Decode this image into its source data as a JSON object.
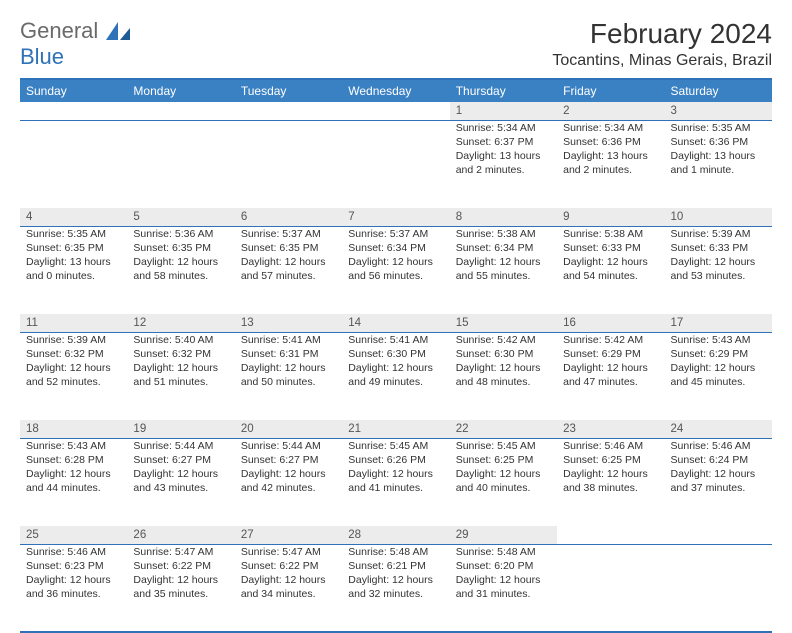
{
  "logo": {
    "part1": "General",
    "part2": "Blue"
  },
  "title": "February 2024",
  "location": "Tocantins, Minas Gerais, Brazil",
  "colors": {
    "header_bg": "#3a81c4",
    "border": "#2f72b8",
    "daynum_bg": "#ececec",
    "text": "#333333"
  },
  "daynames": [
    "Sunday",
    "Monday",
    "Tuesday",
    "Wednesday",
    "Thursday",
    "Friday",
    "Saturday"
  ],
  "weeks": [
    [
      null,
      null,
      null,
      null,
      {
        "n": "1",
        "sr": "Sunrise: 5:34 AM",
        "ss": "Sunset: 6:37 PM",
        "dl": "Daylight: 13 hours and 2 minutes."
      },
      {
        "n": "2",
        "sr": "Sunrise: 5:34 AM",
        "ss": "Sunset: 6:36 PM",
        "dl": "Daylight: 13 hours and 2 minutes."
      },
      {
        "n": "3",
        "sr": "Sunrise: 5:35 AM",
        "ss": "Sunset: 6:36 PM",
        "dl": "Daylight: 13 hours and 1 minute."
      }
    ],
    [
      {
        "n": "4",
        "sr": "Sunrise: 5:35 AM",
        "ss": "Sunset: 6:35 PM",
        "dl": "Daylight: 13 hours and 0 minutes."
      },
      {
        "n": "5",
        "sr": "Sunrise: 5:36 AM",
        "ss": "Sunset: 6:35 PM",
        "dl": "Daylight: 12 hours and 58 minutes."
      },
      {
        "n": "6",
        "sr": "Sunrise: 5:37 AM",
        "ss": "Sunset: 6:35 PM",
        "dl": "Daylight: 12 hours and 57 minutes."
      },
      {
        "n": "7",
        "sr": "Sunrise: 5:37 AM",
        "ss": "Sunset: 6:34 PM",
        "dl": "Daylight: 12 hours and 56 minutes."
      },
      {
        "n": "8",
        "sr": "Sunrise: 5:38 AM",
        "ss": "Sunset: 6:34 PM",
        "dl": "Daylight: 12 hours and 55 minutes."
      },
      {
        "n": "9",
        "sr": "Sunrise: 5:38 AM",
        "ss": "Sunset: 6:33 PM",
        "dl": "Daylight: 12 hours and 54 minutes."
      },
      {
        "n": "10",
        "sr": "Sunrise: 5:39 AM",
        "ss": "Sunset: 6:33 PM",
        "dl": "Daylight: 12 hours and 53 minutes."
      }
    ],
    [
      {
        "n": "11",
        "sr": "Sunrise: 5:39 AM",
        "ss": "Sunset: 6:32 PM",
        "dl": "Daylight: 12 hours and 52 minutes."
      },
      {
        "n": "12",
        "sr": "Sunrise: 5:40 AM",
        "ss": "Sunset: 6:32 PM",
        "dl": "Daylight: 12 hours and 51 minutes."
      },
      {
        "n": "13",
        "sr": "Sunrise: 5:41 AM",
        "ss": "Sunset: 6:31 PM",
        "dl": "Daylight: 12 hours and 50 minutes."
      },
      {
        "n": "14",
        "sr": "Sunrise: 5:41 AM",
        "ss": "Sunset: 6:30 PM",
        "dl": "Daylight: 12 hours and 49 minutes."
      },
      {
        "n": "15",
        "sr": "Sunrise: 5:42 AM",
        "ss": "Sunset: 6:30 PM",
        "dl": "Daylight: 12 hours and 48 minutes."
      },
      {
        "n": "16",
        "sr": "Sunrise: 5:42 AM",
        "ss": "Sunset: 6:29 PM",
        "dl": "Daylight: 12 hours and 47 minutes."
      },
      {
        "n": "17",
        "sr": "Sunrise: 5:43 AM",
        "ss": "Sunset: 6:29 PM",
        "dl": "Daylight: 12 hours and 45 minutes."
      }
    ],
    [
      {
        "n": "18",
        "sr": "Sunrise: 5:43 AM",
        "ss": "Sunset: 6:28 PM",
        "dl": "Daylight: 12 hours and 44 minutes."
      },
      {
        "n": "19",
        "sr": "Sunrise: 5:44 AM",
        "ss": "Sunset: 6:27 PM",
        "dl": "Daylight: 12 hours and 43 minutes."
      },
      {
        "n": "20",
        "sr": "Sunrise: 5:44 AM",
        "ss": "Sunset: 6:27 PM",
        "dl": "Daylight: 12 hours and 42 minutes."
      },
      {
        "n": "21",
        "sr": "Sunrise: 5:45 AM",
        "ss": "Sunset: 6:26 PM",
        "dl": "Daylight: 12 hours and 41 minutes."
      },
      {
        "n": "22",
        "sr": "Sunrise: 5:45 AM",
        "ss": "Sunset: 6:25 PM",
        "dl": "Daylight: 12 hours and 40 minutes."
      },
      {
        "n": "23",
        "sr": "Sunrise: 5:46 AM",
        "ss": "Sunset: 6:25 PM",
        "dl": "Daylight: 12 hours and 38 minutes."
      },
      {
        "n": "24",
        "sr": "Sunrise: 5:46 AM",
        "ss": "Sunset: 6:24 PM",
        "dl": "Daylight: 12 hours and 37 minutes."
      }
    ],
    [
      {
        "n": "25",
        "sr": "Sunrise: 5:46 AM",
        "ss": "Sunset: 6:23 PM",
        "dl": "Daylight: 12 hours and 36 minutes."
      },
      {
        "n": "26",
        "sr": "Sunrise: 5:47 AM",
        "ss": "Sunset: 6:22 PM",
        "dl": "Daylight: 12 hours and 35 minutes."
      },
      {
        "n": "27",
        "sr": "Sunrise: 5:47 AM",
        "ss": "Sunset: 6:22 PM",
        "dl": "Daylight: 12 hours and 34 minutes."
      },
      {
        "n": "28",
        "sr": "Sunrise: 5:48 AM",
        "ss": "Sunset: 6:21 PM",
        "dl": "Daylight: 12 hours and 32 minutes."
      },
      {
        "n": "29",
        "sr": "Sunrise: 5:48 AM",
        "ss": "Sunset: 6:20 PM",
        "dl": "Daylight: 12 hours and 31 minutes."
      },
      null,
      null
    ]
  ]
}
